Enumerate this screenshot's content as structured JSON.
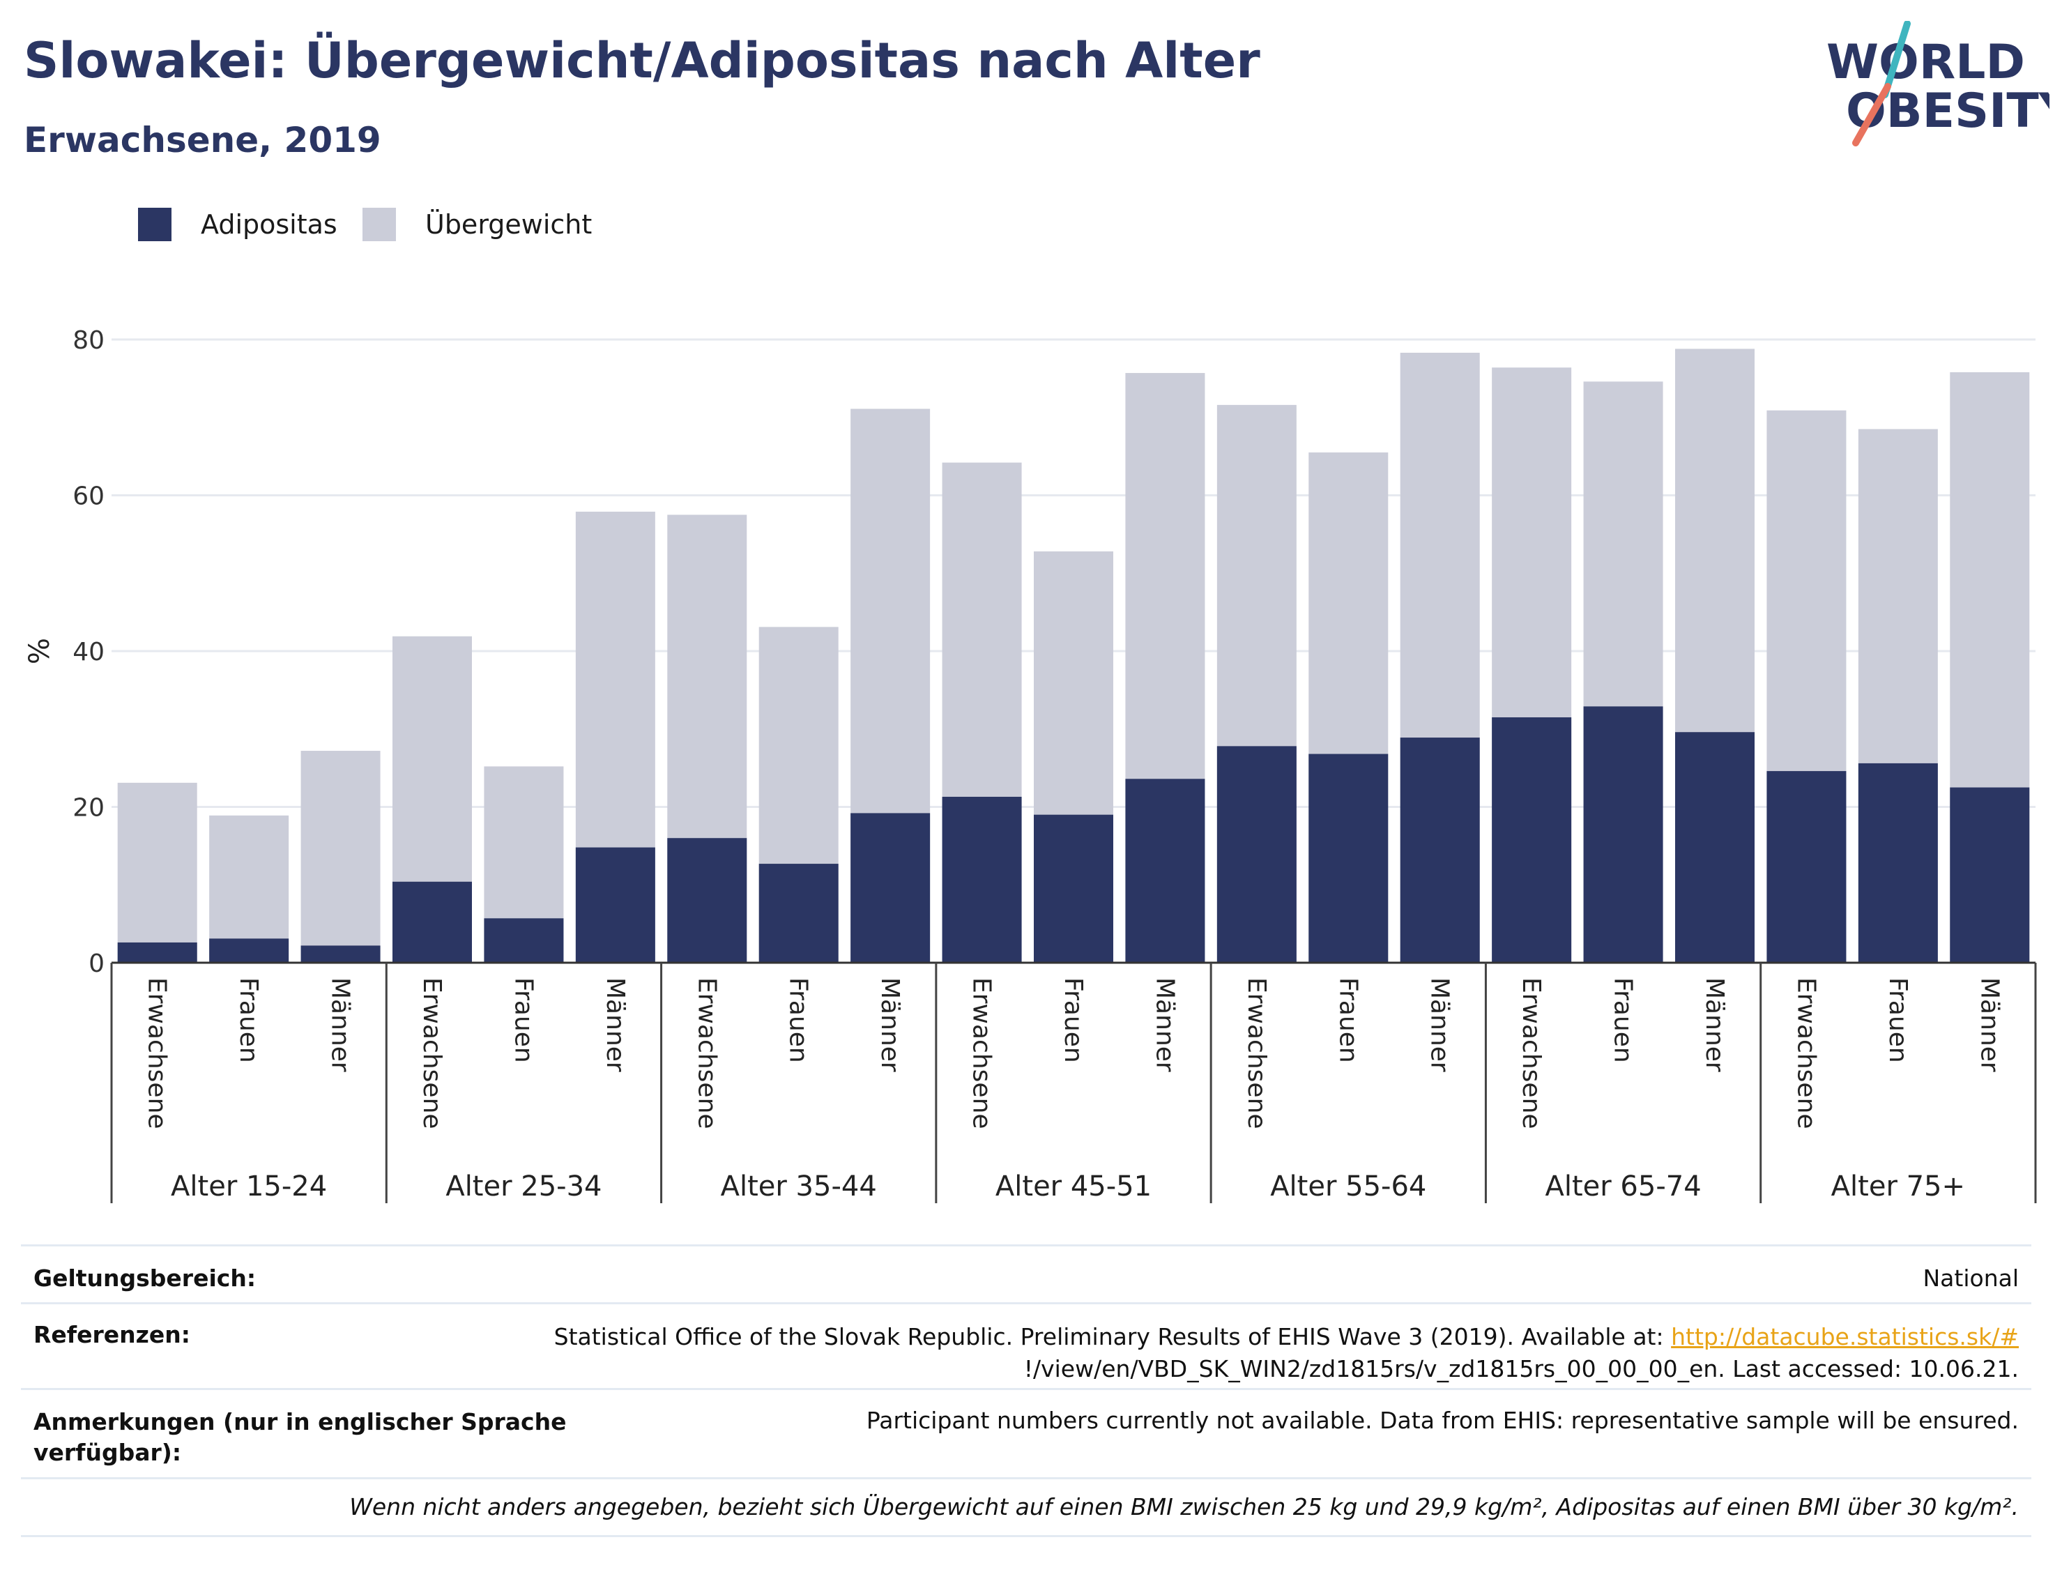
{
  "header": {
    "title": "Slowakei: Übergewicht/Adipositas nach Alter",
    "subtitle": "Erwachsene, 2019"
  },
  "logo": {
    "line1": "WORLD",
    "line2": "OBESITY"
  },
  "colors": {
    "adipositas": "#2b3663",
    "uebergewicht": "#cbcdd9",
    "brand_teal": "#3fb5bf",
    "brand_coral": "#e8735e",
    "link": "#e8a317"
  },
  "chart_data": {
    "type": "bar",
    "stacked": false,
    "ylabel": "%",
    "ylim": [
      0,
      80
    ],
    "yticks": [
      0,
      20,
      40,
      60,
      80
    ],
    "grid": true,
    "legend_position": "top-left",
    "groups": [
      "Alter 15-24",
      "Alter 25-34",
      "Alter 35-44",
      "Alter 45-51",
      "Alter 55-64",
      "Alter 65-74",
      "Alter 75+"
    ],
    "subcategories": [
      "Erwachsene",
      "Frauen",
      "Männer"
    ],
    "series": [
      {
        "name": "Adipositas",
        "color": "#2b3663",
        "values": [
          2.6,
          3.1,
          2.2,
          10.4,
          5.7,
          14.8,
          16.0,
          12.7,
          19.2,
          21.3,
          19.0,
          23.6,
          27.8,
          26.8,
          28.9,
          31.5,
          32.9,
          29.6,
          24.6,
          25.6,
          22.5
        ]
      },
      {
        "name": "Übergewicht",
        "color": "#cbcdd9",
        "values": [
          23.1,
          18.9,
          27.2,
          41.9,
          25.2,
          57.9,
          57.5,
          43.1,
          71.1,
          64.2,
          52.8,
          75.7,
          71.6,
          65.5,
          78.3,
          76.4,
          74.6,
          78.8,
          70.9,
          68.5,
          75.8
        ]
      }
    ]
  },
  "footer": {
    "scope_label": "Geltungsbereich:",
    "scope_value": "National",
    "ref_label": "Referenzen:",
    "ref_text1": "Statistical Office of the Slovak Republic. Preliminary Results of EHIS Wave 3 (2019). Available at: ",
    "ref_link": "http://datacube.statistics.sk/#",
    "ref_text2": "!/view/en/VBD_SK_WIN2/zd1815rs/v_zd1815rs_00_00_00_en. Last accessed: 10.06.21.",
    "notes_label_1": "Anmerkungen (nur in englischer Sprache",
    "notes_label_2": "verfügbar):",
    "notes_value": "Participant numbers currently not available. Data from EHIS: representative sample will be ensured.",
    "definition": "Wenn nicht anders angegeben, bezieht sich Übergewicht auf einen BMI zwischen 25 kg und 29,9 kg/m², Adipositas auf einen BMI über 30 kg/m²."
  }
}
